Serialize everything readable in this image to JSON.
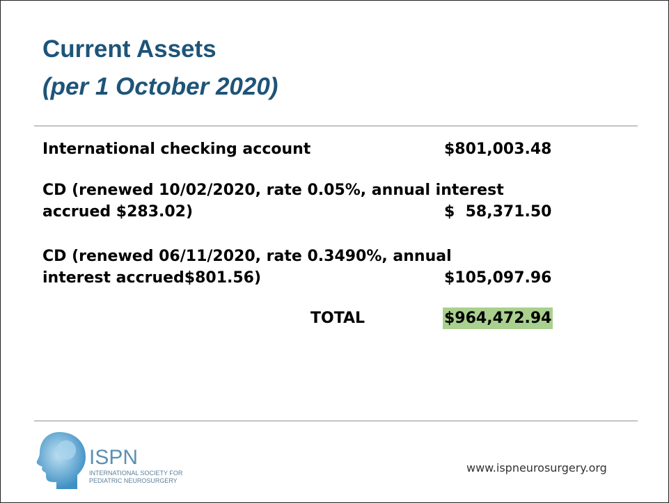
{
  "header": {
    "title": "Current Assets",
    "subtitle": "(per 1 October 2020)"
  },
  "items": [
    {
      "description": [
        "International checking account"
      ],
      "amount": "$801,003.48"
    },
    {
      "description": [
        "CD (renewed 10/02/2020, rate 0.05%, annual interest",
        "accrued $283.02)"
      ],
      "amount": "$  58,371.50"
    },
    {
      "description": [
        "CD (renewed 06/11/2020, rate 0.3490%, annual",
        "interest accrued$801.56)"
      ],
      "amount": "$105,097.96"
    }
  ],
  "total": {
    "label": "TOTAL",
    "amount": "$964,472.94"
  },
  "footer": {
    "logo": {
      "name": "ISPN",
      "lines": [
        "INTERNATIONAL SOCIETY FOR",
        "PEDIATRIC NEUROSURGERY"
      ]
    },
    "url": "www.ispneurosurgery.org"
  }
}
